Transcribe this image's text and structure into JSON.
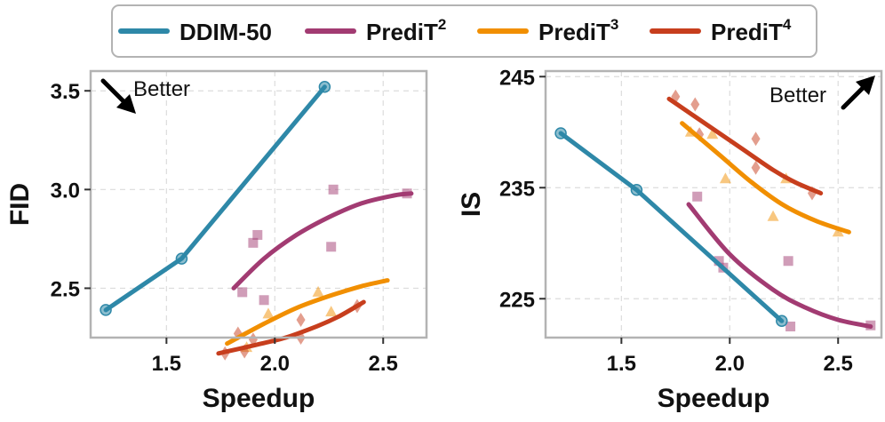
{
  "legend": {
    "items": [
      {
        "name": "DDIM-50",
        "base": "DDIM-50",
        "sup": "",
        "color": "#2e88a8"
      },
      {
        "name": "PrediT^2",
        "base": "PrediT",
        "sup": "2",
        "color": "#a23b72"
      },
      {
        "name": "PrediT^3",
        "base": "PrediT",
        "sup": "3",
        "color": "#f18f01"
      },
      {
        "name": "PrediT^4",
        "base": "PrediT",
        "sup": "4",
        "color": "#c73e1d"
      }
    ]
  },
  "chart_data": [
    {
      "type": "line",
      "title": "",
      "xlabel": "Speedup",
      "ylabel": "FID",
      "annotation": "Better",
      "annotation_direction": "down-right",
      "xlim": [
        1.15,
        2.7
      ],
      "ylim": [
        2.25,
        3.6
      ],
      "xticks": [
        1.5,
        2.0,
        2.5
      ],
      "xtick_labels": [
        "1.5",
        "2.0",
        "2.5"
      ],
      "yticks": [
        2.5,
        3.0,
        3.5
      ],
      "ytick_labels": [
        "2.5",
        "3.0",
        "3.5"
      ],
      "series": [
        {
          "name": "DDIM-50",
          "kind": "line_markers",
          "x": [
            1.22,
            1.57,
            2.23
          ],
          "y": [
            2.39,
            2.65,
            3.52
          ]
        },
        {
          "name": "PrediT^2",
          "kind": "fit",
          "x": [
            1.81,
            1.95,
            2.1,
            2.25,
            2.4,
            2.55,
            2.63
          ],
          "y": [
            2.5,
            2.65,
            2.77,
            2.86,
            2.93,
            2.97,
            2.98
          ]
        },
        {
          "name": "PrediT^3",
          "kind": "fit",
          "x": [
            1.78,
            1.95,
            2.1,
            2.25,
            2.4,
            2.52
          ],
          "y": [
            2.22,
            2.32,
            2.4,
            2.46,
            2.51,
            2.54
          ]
        },
        {
          "name": "PrediT^4",
          "kind": "fit",
          "x": [
            1.74,
            1.9,
            2.05,
            2.2,
            2.3,
            2.41
          ],
          "y": [
            2.17,
            2.21,
            2.25,
            2.31,
            2.36,
            2.43
          ]
        },
        {
          "name": "PrediT^2 samples",
          "kind": "scatter",
          "marker": "square",
          "x": [
            1.85,
            1.9,
            1.92,
            1.95,
            2.26,
            2.27,
            2.61
          ],
          "y": [
            2.48,
            2.73,
            2.77,
            2.44,
            2.71,
            3.0,
            2.98
          ]
        },
        {
          "name": "PrediT^3 samples",
          "kind": "scatter",
          "marker": "triangle",
          "x": [
            1.87,
            1.97,
            2.2,
            2.26
          ],
          "y": [
            2.2,
            2.37,
            2.48,
            2.38
          ]
        },
        {
          "name": "PrediT^4 samples",
          "kind": "scatter",
          "marker": "diamond",
          "x": [
            1.77,
            1.83,
            1.86,
            1.9,
            2.12,
            2.12,
            2.38
          ],
          "y": [
            2.17,
            2.27,
            2.18,
            2.24,
            2.34,
            2.25,
            2.41
          ]
        }
      ]
    },
    {
      "type": "line",
      "title": "",
      "xlabel": "Speedup",
      "ylabel": "IS",
      "annotation": "Better",
      "annotation_direction": "up-right",
      "xlim": [
        1.15,
        2.7
      ],
      "ylim": [
        221.5,
        245.5
      ],
      "xticks": [
        1.5,
        2.0,
        2.5
      ],
      "xtick_labels": [
        "1.5",
        "2.0",
        "2.5"
      ],
      "yticks": [
        225,
        235,
        245
      ],
      "ytick_labels": [
        "225",
        "235",
        "245"
      ],
      "series": [
        {
          "name": "DDIM-50",
          "kind": "line_markers",
          "x": [
            1.22,
            1.57,
            2.24
          ],
          "y": [
            239.9,
            234.8,
            223.0
          ]
        },
        {
          "name": "PrediT^2",
          "kind": "fit",
          "x": [
            1.81,
            2.0,
            2.2,
            2.35,
            2.5,
            2.65
          ],
          "y": [
            233.5,
            229.0,
            225.8,
            224.2,
            223.1,
            222.5
          ]
        },
        {
          "name": "PrediT^3",
          "kind": "fit",
          "x": [
            1.78,
            1.95,
            2.1,
            2.25,
            2.4,
            2.55
          ],
          "y": [
            240.8,
            238.0,
            235.5,
            233.4,
            232.0,
            231.0
          ]
        },
        {
          "name": "PrediT^4",
          "kind": "fit",
          "x": [
            1.72,
            1.9,
            2.05,
            2.2,
            2.3,
            2.42
          ],
          "y": [
            243.0,
            240.6,
            238.6,
            236.6,
            235.5,
            234.5
          ]
        },
        {
          "name": "PrediT^2 samples",
          "kind": "scatter",
          "marker": "square",
          "x": [
            1.85,
            1.95,
            1.97,
            2.27,
            2.28,
            2.65
          ],
          "y": [
            234.2,
            228.4,
            227.8,
            228.4,
            222.5,
            222.6
          ]
        },
        {
          "name": "PrediT^3 samples",
          "kind": "scatter",
          "marker": "triangle",
          "x": [
            1.82,
            1.92,
            1.98,
            2.2,
            2.26,
            2.5
          ],
          "y": [
            240.0,
            239.8,
            235.8,
            232.4,
            235.8,
            231.0
          ]
        },
        {
          "name": "PrediT^4 samples",
          "kind": "scatter",
          "marker": "diamond",
          "x": [
            1.75,
            1.84,
            1.86,
            2.12,
            2.12,
            2.38
          ],
          "y": [
            243.2,
            242.5,
            239.8,
            239.4,
            236.8,
            234.5
          ]
        }
      ]
    }
  ]
}
